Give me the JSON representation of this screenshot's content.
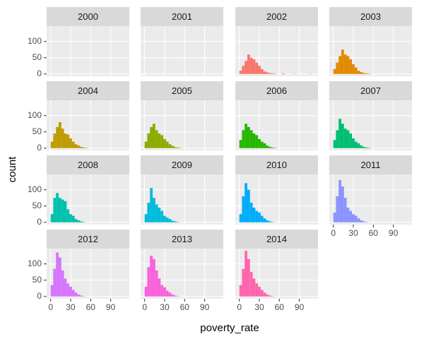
{
  "chart_data": {
    "type": "histogram",
    "xlabel": "poverty_rate",
    "ylabel": "count",
    "xlim": [
      -6,
      118
    ],
    "ylim": [
      -7,
      147
    ],
    "xticks": [
      0,
      30,
      60,
      90
    ],
    "yticks": [
      0,
      50,
      100
    ],
    "bins": [
      0,
      4,
      8,
      12,
      16,
      20,
      24,
      28,
      32,
      36,
      40,
      44,
      48,
      52,
      56,
      60,
      64,
      68,
      72,
      76,
      80,
      84,
      88,
      92,
      96,
      100,
      104,
      108,
      112
    ],
    "panels": [
      {
        "title": "2000",
        "counts": [
          0,
          0,
          0,
          0,
          0,
          0,
          0,
          0,
          0,
          0,
          0,
          0,
          0,
          0,
          0,
          0,
          0,
          0,
          0,
          0,
          0,
          0,
          0,
          0,
          0,
          0,
          0,
          0
        ]
      },
      {
        "title": "2001",
        "counts": [
          0,
          0,
          0,
          0,
          0,
          0,
          0,
          0,
          0,
          0,
          0,
          0,
          0,
          0,
          0,
          0,
          0,
          0,
          0,
          0,
          0,
          0,
          0,
          0,
          0,
          0,
          0,
          0
        ]
      },
      {
        "title": "2002",
        "color": "#F8766D",
        "counts": [
          10,
          25,
          40,
          60,
          50,
          45,
          35,
          25,
          15,
          8,
          5,
          3,
          2,
          1,
          0,
          0,
          2,
          0,
          0,
          0,
          1,
          0,
          0,
          0,
          0,
          0,
          1,
          0
        ]
      },
      {
        "title": "2003",
        "color": "#E18A00",
        "counts": [
          15,
          35,
          55,
          75,
          60,
          55,
          45,
          30,
          20,
          10,
          6,
          3,
          2,
          1,
          0,
          0,
          0,
          0,
          0,
          0,
          0,
          0,
          0,
          0,
          0,
          0,
          0,
          0
        ]
      },
      {
        "title": "2004",
        "color": "#BE9C00",
        "counts": [
          20,
          45,
          65,
          80,
          60,
          45,
          42,
          30,
          20,
          12,
          8,
          4,
          2,
          1,
          0,
          0,
          0,
          0,
          0,
          0,
          0,
          0,
          0,
          0,
          0,
          0,
          0,
          0
        ]
      },
      {
        "title": "2005",
        "color": "#8CAB00",
        "counts": [
          20,
          45,
          65,
          75,
          55,
          45,
          40,
          28,
          20,
          12,
          7,
          3,
          2,
          1,
          0,
          0,
          0,
          0,
          0,
          0,
          0,
          0,
          0,
          0,
          0,
          0,
          0,
          0
        ]
      },
      {
        "title": "2006",
        "color": "#24B700",
        "counts": [
          25,
          55,
          75,
          65,
          55,
          45,
          40,
          28,
          20,
          15,
          8,
          4,
          2,
          1,
          0,
          0,
          0,
          0,
          0,
          0,
          0,
          0,
          0,
          0,
          0,
          0,
          0,
          0
        ]
      },
      {
        "title": "2007",
        "color": "#00BE70",
        "counts": [
          25,
          55,
          90,
          75,
          60,
          55,
          45,
          30,
          20,
          15,
          8,
          4,
          2,
          1,
          0,
          0,
          0,
          0,
          0,
          0,
          0,
          0,
          0,
          0,
          0,
          0,
          0,
          0
        ]
      },
      {
        "title": "2008",
        "color": "#00C1AB",
        "counts": [
          25,
          75,
          90,
          75,
          70,
          65,
          40,
          25,
          20,
          10,
          6,
          3,
          1,
          0,
          0,
          0,
          0,
          0,
          0,
          0,
          0,
          0,
          0,
          0,
          0,
          0,
          0,
          0
        ]
      },
      {
        "title": "2009",
        "color": "#00BBDA",
        "counts": [
          25,
          60,
          105,
          75,
          55,
          45,
          35,
          20,
          15,
          10,
          5,
          3,
          1,
          0,
          0,
          0,
          0,
          0,
          0,
          0,
          0,
          0,
          0,
          0,
          0,
          0,
          0,
          0
        ]
      },
      {
        "title": "2010",
        "color": "#00ACFC",
        "counts": [
          25,
          80,
          120,
          100,
          60,
          45,
          35,
          30,
          20,
          12,
          6,
          3,
          1,
          0,
          0,
          0,
          0,
          0,
          0,
          0,
          0,
          0,
          0,
          0,
          0,
          0,
          0,
          0
        ]
      },
      {
        "title": "2011",
        "color": "#8B93FF",
        "counts": [
          30,
          80,
          130,
          110,
          75,
          45,
          35,
          25,
          20,
          12,
          6,
          3,
          1,
          0,
          0,
          0,
          0,
          0,
          0,
          0,
          0,
          0,
          0,
          0,
          0,
          0,
          0,
          0
        ]
      },
      {
        "title": "2012",
        "color": "#D575FE",
        "counts": [
          35,
          85,
          135,
          120,
          80,
          55,
          40,
          30,
          20,
          12,
          6,
          3,
          1,
          0,
          0,
          0,
          0,
          0,
          0,
          0,
          0,
          0,
          0,
          0,
          0,
          0,
          0,
          0
        ]
      },
      {
        "title": "2013",
        "color": "#F962DD",
        "counts": [
          30,
          90,
          125,
          115,
          80,
          55,
          35,
          28,
          18,
          12,
          6,
          3,
          1,
          0,
          0,
          0,
          0,
          0,
          0,
          0,
          0,
          0,
          0,
          0,
          0,
          0,
          0,
          0
        ]
      },
      {
        "title": "2014",
        "color": "#FF65AC",
        "counts": [
          35,
          85,
          140,
          115,
          75,
          55,
          40,
          30,
          20,
          12,
          6,
          3,
          1,
          0,
          0,
          0,
          0,
          0,
          0,
          0,
          0,
          0,
          0,
          0,
          0,
          0,
          0,
          0
        ]
      }
    ]
  }
}
